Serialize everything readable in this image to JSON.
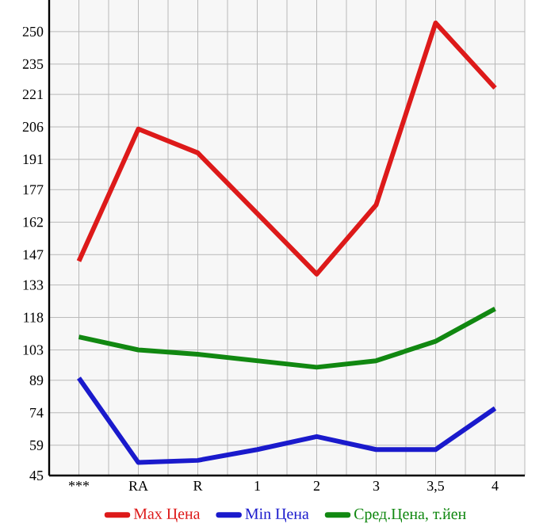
{
  "chart_data": {
    "type": "line",
    "categories": [
      "***",
      "RA",
      "R",
      "1",
      "2",
      "3",
      "3,5",
      "4"
    ],
    "series": [
      {
        "name": "Max Цена",
        "color": "#dd1a1a",
        "values": [
          144,
          205,
          194,
          166,
          138,
          170,
          254,
          224
        ]
      },
      {
        "name": "Min Цена",
        "color": "#1a1acc",
        "values": [
          90,
          51,
          52,
          57,
          63,
          57,
          57,
          76
        ]
      },
      {
        "name": "Сред.Цена, т.йен",
        "color": "#118811",
        "values": [
          109,
          103,
          101,
          98,
          95,
          98,
          107,
          122
        ]
      }
    ],
    "ylim": [
      45,
      264.6
    ],
    "yticks": [
      45,
      59,
      74,
      89,
      103,
      118,
      133,
      147,
      162,
      177,
      191,
      206,
      221,
      235,
      250
    ],
    "grid": true,
    "legend": "bottom",
    "marker": "none",
    "line_style": "solid"
  }
}
